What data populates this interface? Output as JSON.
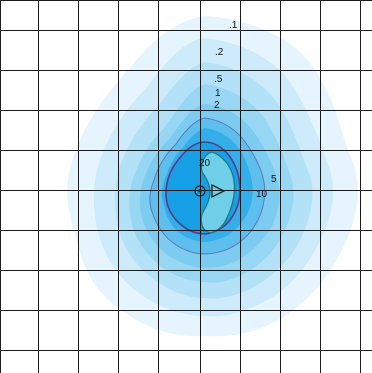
{
  "contour_labels": {
    "l_0_1": ".1",
    "l_0_2": ".2",
    "l_0_5": ".5",
    "l_1": "1",
    "l_2": "2",
    "l_5": "5",
    "l_10": "10",
    "l_20": "20"
  },
  "colors": {
    "background": "#ffffff",
    "grid": "#1a1a1a",
    "level_0_1": "#e6f5fd",
    "level_0_2": "#cdebfa",
    "level_0_5": "#b3e1f7",
    "level_1": "#98d7f4",
    "level_2": "#7ccbf1",
    "level_5": "#5cbfee",
    "level_10": "#34aeea",
    "level_20": "#18a0e6",
    "inner_blob": "#6fcfe9",
    "contour_purple": "#5a3a8c",
    "contour_teal": "#1c7c8a"
  },
  "markers": {
    "source_icon": "circle-dot",
    "receiver_icon": "triangle-right"
  }
}
